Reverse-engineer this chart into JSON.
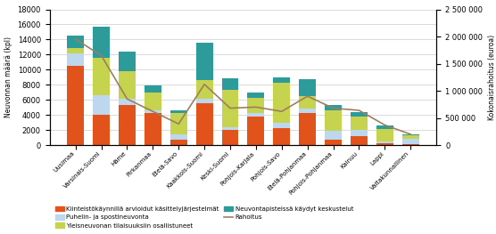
{
  "categories": [
    "Uusimaa",
    "Varsinais-Suomi",
    "Häme",
    "Pirkanmaa",
    "Etelä-Savo",
    "Kaakkois-Suomi",
    "Keski-Suomi",
    "Pohjois-Karjala",
    "Pohjois-Savo",
    "Etelä-Pohjanmaa",
    "Pohjois-Pohjanmaa",
    "Kainuu",
    "Lappi",
    "Valtakunnallinen"
  ],
  "kiinteisto": [
    10500,
    4000,
    5300,
    4300,
    700,
    5500,
    2000,
    3800,
    2300,
    4300,
    700,
    1200,
    250,
    100
  ],
  "puhelin": [
    1700,
    2600,
    800,
    300,
    700,
    700,
    400,
    500,
    700,
    500,
    1200,
    800,
    200,
    700
  ],
  "yleisneuvonta": [
    700,
    5000,
    3700,
    2400,
    2800,
    2400,
    4900,
    2000,
    5300,
    1700,
    2700,
    1800,
    1700,
    500
  ],
  "neuvontapiste": [
    1600,
    4100,
    2600,
    900,
    400,
    5000,
    1600,
    700,
    700,
    2200,
    700,
    600,
    400,
    100
  ],
  "rahoitus": [
    1950000,
    1650000,
    850000,
    620000,
    390000,
    1120000,
    680000,
    700000,
    620000,
    900000,
    680000,
    640000,
    370000,
    200000
  ],
  "bar_colors": {
    "kiinteisto": "#E2531B",
    "puhelin": "#BDD7EE",
    "yleisneuvonta": "#C5D34E",
    "neuvontapiste": "#2E9B9B"
  },
  "line_color": "#9B8060",
  "ylim_left": [
    0,
    18000
  ],
  "ylim_right": [
    0,
    2500000
  ],
  "ylabel_left": "Neuvonnan määrä (kpl)",
  "ylabel_right": "Kokonaisrahoitus (euroa)",
  "legend_labels": {
    "kiinteisto": "Kiinteistökäynnillä arvioidut käsittelyjärjestelmät",
    "puhelin": "Puhelin- ja spostineuvonta",
    "yleisneuvonta": "Yleisneuvonan tilaisuuksiin osallistuneet",
    "neuvontapiste": "Neuvontapisteissä käydyt keskustelut",
    "rahoitus": "Rahoitus"
  },
  "yticks_left": [
    0,
    2000,
    4000,
    6000,
    8000,
    10000,
    12000,
    14000,
    16000,
    18000
  ],
  "yticks_right": [
    0,
    500000,
    1000000,
    1500000,
    2000000,
    2500000
  ],
  "background_color": "#FFFFFF",
  "grid_color": "#CCCCCC"
}
